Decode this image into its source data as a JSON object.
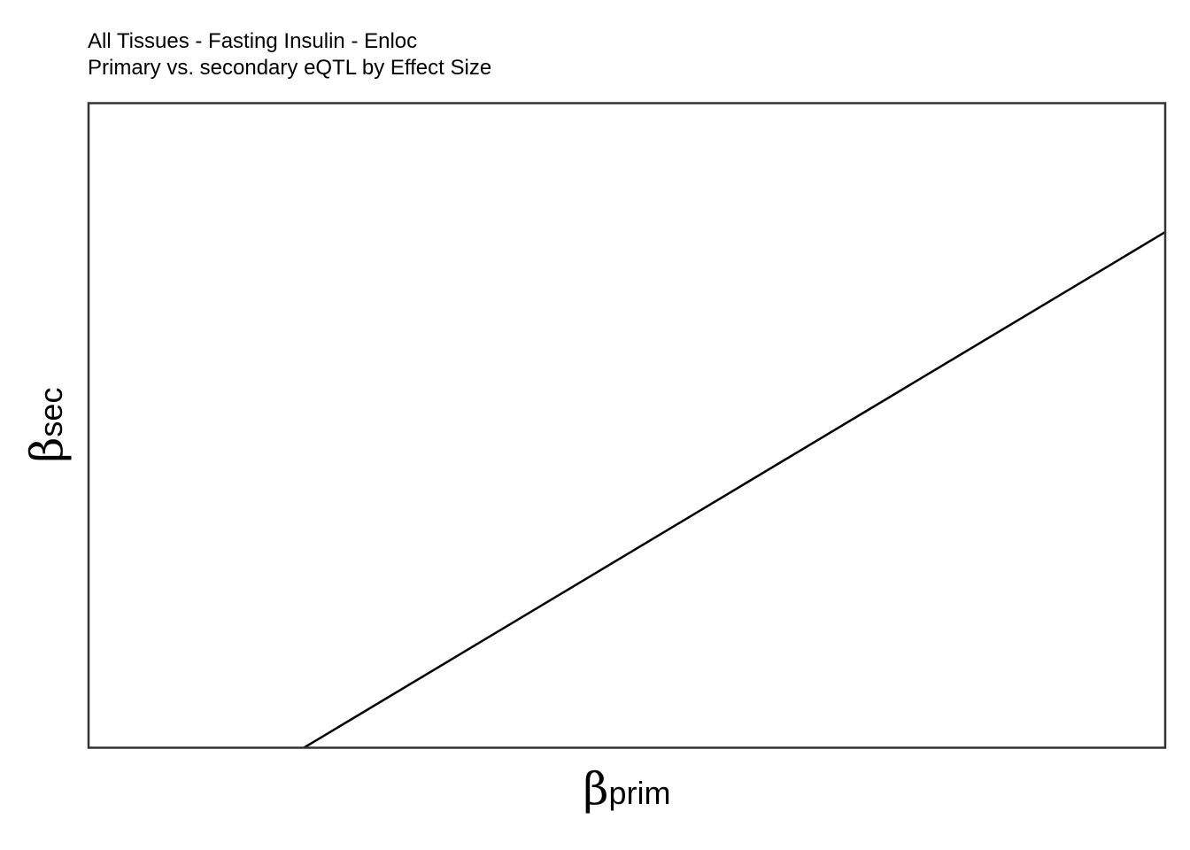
{
  "chart_data": {
    "type": "line",
    "title": "All Tissues - Fasting Insulin - Enloc",
    "subtitle": "Primary vs. secondary eQTL by Effect Size",
    "xlabel": {
      "symbol": "β",
      "subscript": "prim"
    },
    "ylabel": {
      "symbol": "β",
      "subscript": "sec"
    },
    "xlim": [
      0,
      1
    ],
    "ylim": [
      0,
      1
    ],
    "grid": false,
    "tick_labels": false,
    "series": [
      {
        "type": "abline",
        "slope": 1,
        "intercept": -0.2,
        "color": "#000000"
      }
    ]
  }
}
